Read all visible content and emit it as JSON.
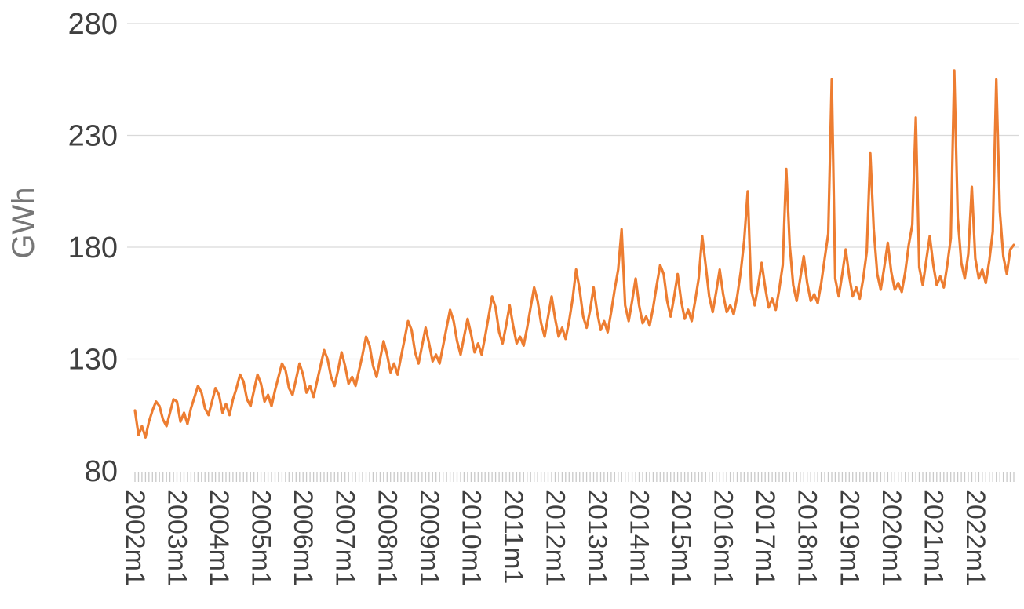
{
  "page": {
    "background": "#ffffff"
  },
  "chart_data": {
    "type": "line",
    "title": "",
    "xlabel": "",
    "ylabel": "GWh",
    "ylim": [
      80,
      280
    ],
    "yticks": [
      80,
      130,
      180,
      230,
      280
    ],
    "grid": "horizontal",
    "legend": "none",
    "frequency": "monthly",
    "x_range": "2002m1 to 2022m12",
    "months_per_label": 12,
    "x_tick_labels": [
      "2002m1",
      "2003m1",
      "2004m1",
      "2005m1",
      "2006m1",
      "2007m1",
      "2008m1",
      "2009m1",
      "2010m1",
      "2011m1",
      "2012m1",
      "2013m1",
      "2014m1",
      "2015m1",
      "2016m1",
      "2017m1",
      "2018m1",
      "2019m1",
      "2020m1",
      "2021m1",
      "2022m1"
    ],
    "colors": {
      "line": "#ED7D31",
      "grid": "#D9D9D9",
      "tick": "#C9C9C9",
      "tick_text": "#404040",
      "ylabel_text": "#767676"
    },
    "series": [
      {
        "name": "GWh",
        "color": "#ED7D31",
        "values": [
          107,
          96,
          100,
          95,
          102,
          107,
          111,
          109,
          103,
          100,
          106,
          112,
          111,
          102,
          106,
          101,
          108,
          113,
          118,
          115,
          108,
          105,
          111,
          117,
          114,
          106,
          110,
          105,
          112,
          117,
          123,
          120,
          112,
          109,
          116,
          123,
          119,
          111,
          114,
          109,
          116,
          122,
          128,
          125,
          117,
          114,
          121,
          128,
          123,
          115,
          118,
          113,
          120,
          127,
          134,
          130,
          122,
          118,
          125,
          133,
          127,
          119,
          122,
          118,
          125,
          132,
          140,
          136,
          127,
          122,
          130,
          138,
          132,
          124,
          128,
          123,
          131,
          139,
          147,
          143,
          133,
          128,
          136,
          144,
          137,
          129,
          132,
          128,
          136,
          144,
          152,
          147,
          138,
          132,
          140,
          148,
          141,
          133,
          137,
          132,
          140,
          149,
          158,
          153,
          142,
          137,
          145,
          154,
          145,
          137,
          140,
          136,
          144,
          153,
          162,
          156,
          146,
          140,
          149,
          158,
          148,
          140,
          144,
          139,
          147,
          157,
          170,
          161,
          149,
          144,
          152,
          162,
          151,
          143,
          147,
          142,
          151,
          161,
          170,
          188,
          154,
          147,
          156,
          166,
          154,
          146,
          149,
          145,
          153,
          163,
          172,
          168,
          156,
          149,
          158,
          168,
          156,
          148,
          152,
          147,
          156,
          166,
          185,
          172,
          158,
          151,
          160,
          170,
          159,
          151,
          154,
          150,
          158,
          169,
          183,
          205,
          161,
          154,
          163,
          173,
          162,
          153,
          157,
          152,
          161,
          172,
          215,
          181,
          163,
          156,
          166,
          176,
          164,
          156,
          159,
          155,
          164,
          175,
          186,
          255,
          166,
          158,
          168,
          179,
          167,
          158,
          162,
          157,
          166,
          178,
          222,
          188,
          168,
          161,
          171,
          182,
          169,
          161,
          164,
          160,
          169,
          181,
          190,
          238,
          171,
          163,
          174,
          185,
          172,
          163,
          167,
          162,
          172,
          184,
          259,
          193,
          173,
          166,
          177,
          207,
          175,
          166,
          170,
          164,
          174,
          187,
          255,
          196,
          176,
          168,
          179,
          181
        ]
      }
    ]
  }
}
